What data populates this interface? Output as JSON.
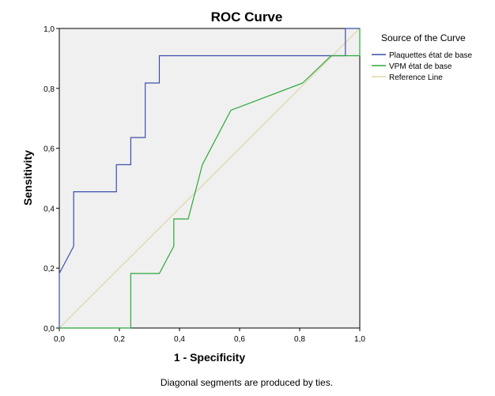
{
  "chart_data": {
    "type": "line",
    "title": "ROC Curve",
    "xlabel": "1 - Specificity",
    "ylabel": "Sensitivity",
    "xlim": [
      0,
      1
    ],
    "ylim": [
      0,
      1
    ],
    "x_ticks": [
      "0,0",
      "0,2",
      "0,4",
      "0,6",
      "0,8",
      "1,0"
    ],
    "y_ticks": [
      "0,0",
      "0,2",
      "0,4",
      "0,6",
      "0,8",
      "1,0"
    ],
    "grid": false,
    "legend_title": "Source of the Curve",
    "legend_position": "right",
    "series": [
      {
        "name": "Plaquettes état de base",
        "color": "#3b4fa8",
        "points": [
          [
            0,
            0
          ],
          [
            0,
            0.182
          ],
          [
            0.048,
            0.273
          ],
          [
            0.048,
            0.455
          ],
          [
            0.19,
            0.455
          ],
          [
            0.19,
            0.545
          ],
          [
            0.238,
            0.545
          ],
          [
            0.238,
            0.636
          ],
          [
            0.286,
            0.636
          ],
          [
            0.286,
            0.818
          ],
          [
            0.333,
            0.818
          ],
          [
            0.333,
            0.909
          ],
          [
            0.952,
            0.909
          ],
          [
            0.952,
            1.0
          ],
          [
            1.0,
            1.0
          ]
        ]
      },
      {
        "name": "VPM état de base",
        "color": "#2aa83a",
        "points": [
          [
            0,
            0
          ],
          [
            0.238,
            0
          ],
          [
            0.238,
            0.182
          ],
          [
            0.333,
            0.182
          ],
          [
            0.381,
            0.273
          ],
          [
            0.381,
            0.364
          ],
          [
            0.429,
            0.364
          ],
          [
            0.476,
            0.545
          ],
          [
            0.571,
            0.727
          ],
          [
            0.81,
            0.818
          ],
          [
            0.905,
            0.909
          ],
          [
            1.0,
            0.909
          ],
          [
            1.0,
            1.0
          ]
        ]
      },
      {
        "name": "Reference Line",
        "color": "#ddd6a8",
        "points": [
          [
            0,
            0
          ],
          [
            1,
            1
          ]
        ]
      }
    ]
  },
  "footnote": "Diagonal segments are produced by ties."
}
